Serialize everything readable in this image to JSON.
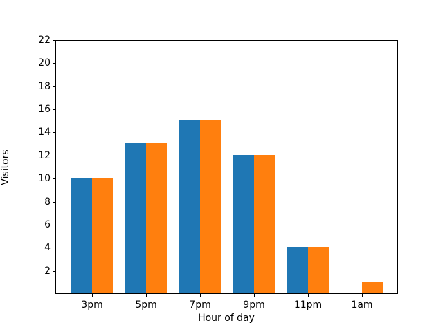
{
  "chart_data": {
    "type": "bar",
    "title": "",
    "xlabel": "Hour of day",
    "ylabel": "Visitors",
    "categories": [
      "3pm",
      "5pm",
      "7pm",
      "9pm",
      "11pm",
      "1am"
    ],
    "series": [
      {
        "name": "blue",
        "color": "#1f77b4",
        "values": [
          10,
          13,
          15,
          12,
          4,
          0
        ]
      },
      {
        "name": "orange",
        "color": "#ff7f0e",
        "values": [
          10,
          13,
          15,
          12,
          4,
          1
        ]
      }
    ],
    "ylim": [
      0,
      22
    ],
    "yticks": [
      2,
      4,
      6,
      8,
      10,
      12,
      14,
      16,
      18,
      20,
      22
    ],
    "grid": false,
    "legend": "none",
    "background_color": "#ffffff",
    "axis_color": "#000000"
  }
}
